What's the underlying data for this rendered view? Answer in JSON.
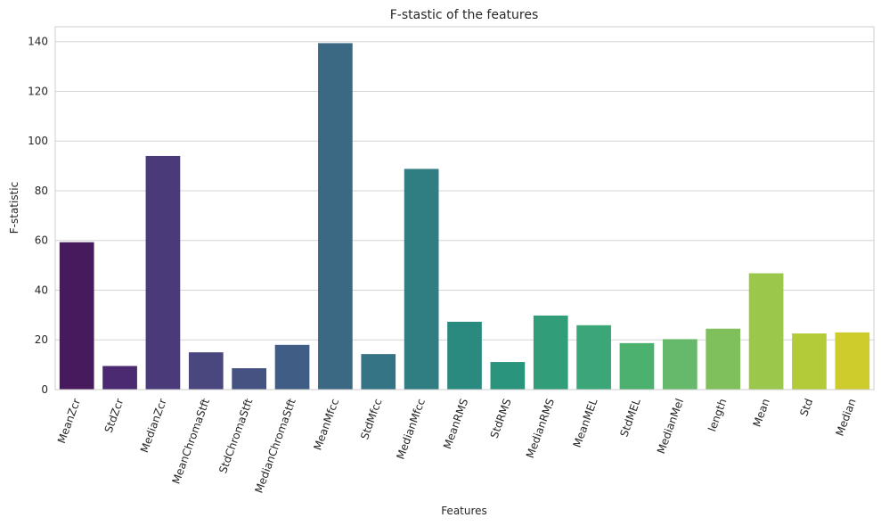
{
  "chart_data": {
    "type": "bar",
    "title": "F-stastic of the features",
    "xlabel": "Features",
    "ylabel": "F-statistic",
    "ylim": [
      0,
      146
    ],
    "yticks": [
      0,
      20,
      40,
      60,
      80,
      100,
      120,
      140
    ],
    "grid": "horizontal",
    "categories": [
      "MeanZcr",
      "StdZcr",
      "MedianZcr",
      "MeanChromaStft",
      "StdChromaStft",
      "MedianChromaStft",
      "MeanMfcc",
      "StdMfcc",
      "MedianMfcc",
      "MeanRMS",
      "StdRMS",
      "MedianRMS",
      "MeanMEL",
      "StdMEL",
      "MedianMel",
      "length",
      "Mean",
      "Std",
      "Median"
    ],
    "values": [
      59.3,
      9.5,
      94.0,
      15.0,
      8.6,
      18.0,
      139.4,
      14.3,
      88.8,
      27.3,
      11.1,
      29.8,
      25.9,
      18.7,
      20.3,
      24.5,
      46.8,
      22.6,
      23.0
    ],
    "colors": [
      "#471a5d",
      "#4b2a72",
      "#4a3a79",
      "#4a467e",
      "#465382",
      "#3f5d85",
      "#3b6984",
      "#357485",
      "#307e82",
      "#2a8a80",
      "#2a957c",
      "#319e79",
      "#3ba778",
      "#4cb16e",
      "#66b86a",
      "#80c05c",
      "#9bc74b",
      "#b3cb38",
      "#cdcc2c"
    ]
  }
}
